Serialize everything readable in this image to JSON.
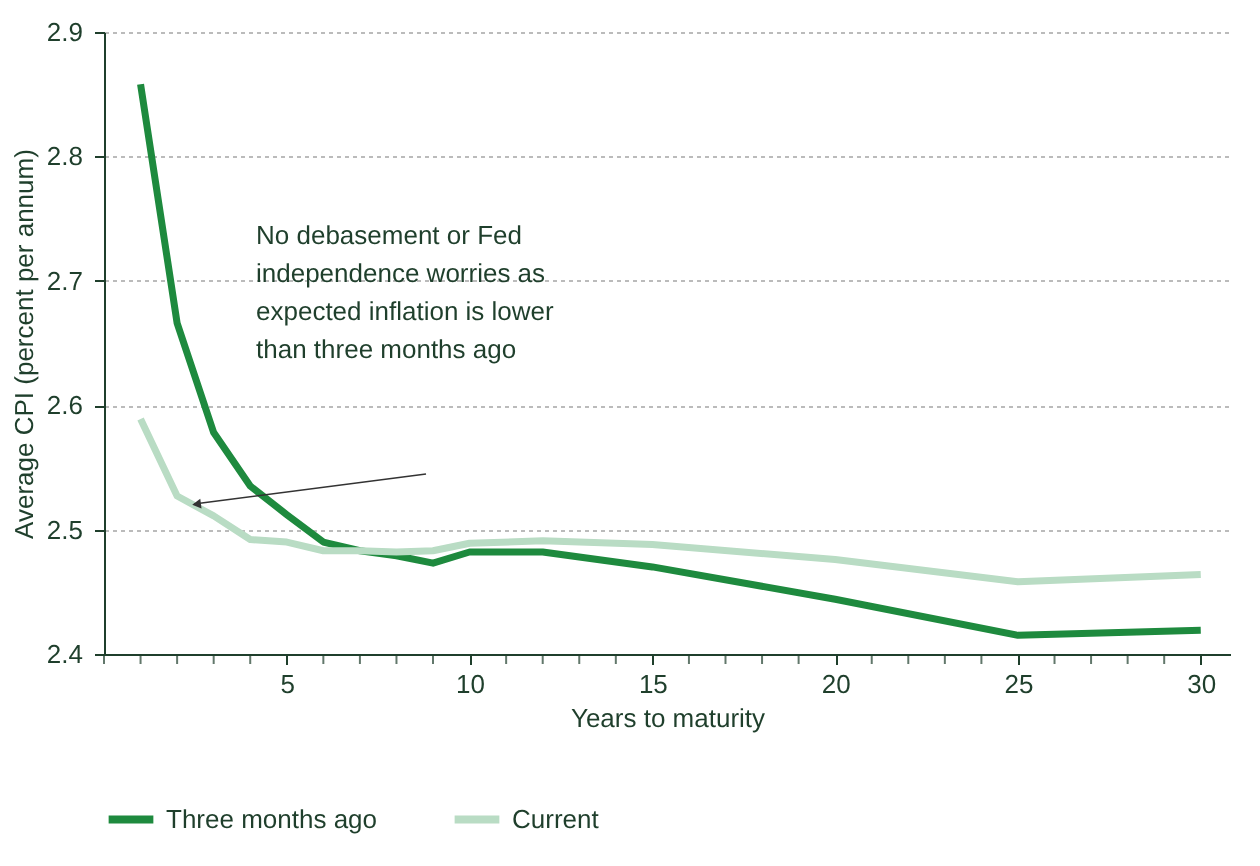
{
  "chart_data": {
    "type": "line",
    "xlabel": "Years to maturity",
    "ylabel": "Average CPI (percent per annum)",
    "x": [
      1,
      2,
      3,
      4,
      5,
      6,
      7,
      8,
      9,
      10,
      12,
      15,
      20,
      25,
      30
    ],
    "series": [
      {
        "name": "Three months ago",
        "color": "#1e8a3e",
        "values": [
          2.858,
          2.666,
          2.578,
          2.535,
          2.512,
          2.49,
          2.483,
          2.479,
          2.473,
          2.482,
          2.482,
          2.47,
          2.444,
          2.415,
          2.419
        ]
      },
      {
        "name": "Current",
        "color": "#b9dcc4",
        "values": [
          2.589,
          2.527,
          2.511,
          2.492,
          2.49,
          2.483,
          2.483,
          2.482,
          2.483,
          2.489,
          2.491,
          2.488,
          2.476,
          2.458,
          2.464
        ]
      }
    ],
    "xlim": [
      0,
      30.8
    ],
    "xticks": [
      {
        "value": 0,
        "label": null
      },
      {
        "value": 1,
        "label": null
      },
      {
        "value": 2,
        "label": null
      },
      {
        "value": 3,
        "label": null
      },
      {
        "value": 4,
        "label": null
      },
      5,
      {
        "value": 6,
        "label": null
      },
      {
        "value": 7,
        "label": null
      },
      {
        "value": 8,
        "label": null
      },
      {
        "value": 9,
        "label": null
      },
      10,
      {
        "value": 11,
        "label": null
      },
      {
        "value": 12,
        "label": null
      },
      {
        "value": 13,
        "label": null
      },
      {
        "value": 14,
        "label": null
      },
      15,
      {
        "value": 16,
        "label": null
      },
      {
        "value": 17,
        "label": null
      },
      {
        "value": 18,
        "label": null
      },
      {
        "value": 19,
        "label": null
      },
      20,
      {
        "value": 21,
        "label": null
      },
      {
        "value": 22,
        "label": null
      },
      {
        "value": 23,
        "label": null
      },
      {
        "value": 24,
        "label": null
      },
      25,
      {
        "value": 26,
        "label": null
      },
      {
        "value": 27,
        "label": null
      },
      {
        "value": 28,
        "label": null
      },
      {
        "value": 29,
        "label": null
      },
      30
    ],
    "ylim": [
      2.4,
      2.9
    ],
    "yticks": [
      2.4,
      2.5,
      2.6,
      2.7,
      2.8,
      2.9
    ],
    "grid": "y",
    "legend": "bottom",
    "marker": "none",
    "line_style": "solid",
    "annotations": [
      "No debasement or Fed\nindependence worries as\nexpected inflation is lower\nthan three months ago"
    ]
  }
}
